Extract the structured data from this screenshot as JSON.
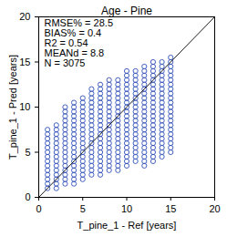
{
  "chart_data": {
    "type": "scatter",
    "title": "Age - Pine",
    "x_label": "T_pine_1 - Ref [years]",
    "y_label": "T_pine_1 - Pred [years]",
    "annotations": [
      "RMSE% = 28.5",
      "BIAS% = 0.4",
      "R2 = 0.54",
      "MEANd = 8.8",
      "N = 3075"
    ],
    "x": [
      1,
      2,
      3,
      4,
      5,
      6,
      7,
      8,
      9,
      10,
      11,
      12,
      13,
      14,
      15
    ],
    "values": [
      [
        1,
        1.5,
        2,
        2.5,
        3,
        3.5,
        4,
        4.5,
        5,
        5.5,
        6,
        6.5,
        7,
        7.5
      ],
      [
        1,
        1.5,
        2,
        2.5,
        3,
        3.5,
        4,
        4.5,
        5,
        5.5,
        6,
        6.5,
        7,
        7.5,
        8
      ],
      [
        1.5,
        2,
        2.5,
        3,
        3.5,
        4,
        4.5,
        5,
        5.5,
        6,
        6.5,
        7,
        7.5,
        8,
        8.5,
        9,
        9.5,
        10
      ],
      [
        1.5,
        2,
        2.5,
        3,
        3.5,
        4,
        4.5,
        5,
        5.5,
        6,
        6.5,
        7,
        7.5,
        8,
        8.5,
        9,
        9.5,
        10,
        10.5
      ],
      [
        2,
        2.5,
        3,
        3.5,
        4,
        4.5,
        5,
        5.5,
        6,
        6.5,
        7,
        7.5,
        8,
        8.5,
        9,
        9.5,
        10,
        10.5,
        11
      ],
      [
        2.5,
        3,
        3.5,
        4,
        4.5,
        5,
        5.5,
        6,
        6.5,
        7,
        7.5,
        8,
        8.5,
        9,
        9.5,
        10,
        10.5,
        11,
        11.5,
        12
      ],
      [
        2.5,
        3,
        3.5,
        4,
        4.5,
        5,
        5.5,
        6,
        6.5,
        7,
        7.5,
        8,
        8.5,
        9,
        9.5,
        10,
        10.5,
        11,
        11.5,
        12,
        12.5
      ],
      [
        3,
        3.5,
        4,
        4.5,
        5,
        5.5,
        6,
        6.5,
        7,
        7.5,
        8,
        8.5,
        9,
        9.5,
        10,
        10.5,
        11,
        11.5,
        12,
        12.5,
        13
      ],
      [
        3,
        3.5,
        4,
        4.5,
        5,
        5.5,
        6,
        6.5,
        7,
        7.5,
        8,
        8.5,
        9,
        9.5,
        10,
        10.5,
        11,
        11.5,
        12,
        12.5,
        13
      ],
      [
        3.5,
        4,
        4.5,
        5,
        5.5,
        6,
        6.5,
        7,
        7.5,
        8,
        8.5,
        9,
        9.5,
        10,
        10.5,
        11,
        11.5,
        12,
        12.5,
        13,
        13.5,
        14
      ],
      [
        4,
        4.5,
        5,
        5.5,
        6,
        6.5,
        7,
        7.5,
        8,
        8.5,
        9,
        9.5,
        10,
        10.5,
        11,
        11.5,
        12,
        12.5,
        13,
        13.5,
        14
      ],
      [
        3.5,
        4,
        4.5,
        5,
        5.5,
        6,
        6.5,
        7,
        7.5,
        8,
        8.5,
        9,
        9.5,
        10,
        10.5,
        11,
        11.5,
        12,
        12.5,
        13,
        13.5,
        14,
        14.5
      ],
      [
        4,
        4.5,
        5,
        5.5,
        6,
        6.5,
        7,
        7.5,
        8,
        8.5,
        9,
        9.5,
        10,
        10.5,
        11,
        11.5,
        12,
        12.5,
        13,
        13.5,
        14,
        14.5,
        15
      ],
      [
        4.5,
        5,
        5.5,
        6,
        6.5,
        7,
        7.5,
        8,
        8.5,
        9,
        9.5,
        10,
        10.5,
        11,
        11.5,
        12,
        12.5,
        13,
        13.5,
        14,
        14.5,
        15
      ],
      [
        5,
        5.5,
        6,
        6.5,
        7,
        7.5,
        8,
        8.5,
        9,
        9.5,
        10,
        10.5,
        11,
        11.5,
        12,
        12.5,
        13,
        13.5,
        14,
        14.5,
        15,
        15.5
      ]
    ],
    "color": "#2f4fb8",
    "marker": "open_circle",
    "xlim": [
      0,
      20
    ],
    "ylim": [
      0,
      20
    ],
    "xticks": [
      0,
      5,
      10,
      15,
      20
    ],
    "yticks": [
      0,
      5,
      10,
      15,
      20
    ],
    "grid": false
  }
}
